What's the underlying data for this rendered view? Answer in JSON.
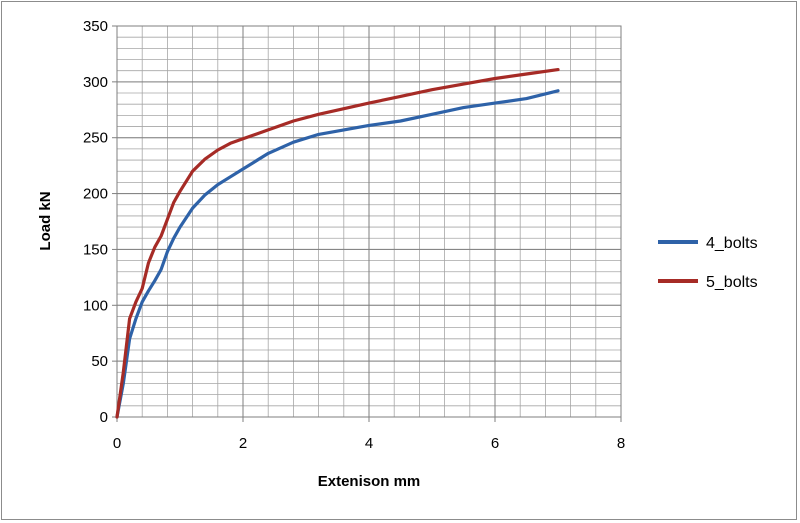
{
  "chart_data": {
    "type": "line",
    "title": "",
    "xlabel": "Extenison mm",
    "ylabel": "Load kN",
    "xlim": [
      0,
      8
    ],
    "ylim": [
      0,
      350
    ],
    "x_ticks": [
      0,
      2,
      4,
      6,
      8
    ],
    "y_ticks": [
      0,
      50,
      100,
      150,
      200,
      250,
      300,
      350
    ],
    "x_minor_step": 0.4,
    "y_minor_step": 10,
    "grid": true,
    "legend_position": "right",
    "series": [
      {
        "name": "4_bolts",
        "color": "#2e62a8",
        "points": [
          [
            0,
            0
          ],
          [
            0.1,
            30
          ],
          [
            0.2,
            70
          ],
          [
            0.3,
            88
          ],
          [
            0.4,
            103
          ],
          [
            0.5,
            113
          ],
          [
            0.6,
            122
          ],
          [
            0.7,
            132
          ],
          [
            0.8,
            148
          ],
          [
            0.9,
            160
          ],
          [
            1.0,
            170
          ],
          [
            1.2,
            187
          ],
          [
            1.4,
            199
          ],
          [
            1.6,
            208
          ],
          [
            1.8,
            215
          ],
          [
            2.0,
            222
          ],
          [
            2.4,
            236
          ],
          [
            2.8,
            246
          ],
          [
            3.2,
            253
          ],
          [
            3.6,
            257
          ],
          [
            4.0,
            261
          ],
          [
            4.5,
            265
          ],
          [
            5.0,
            271
          ],
          [
            5.5,
            277
          ],
          [
            6.0,
            281
          ],
          [
            6.5,
            285
          ],
          [
            7.0,
            292
          ]
        ]
      },
      {
        "name": "5_bolts",
        "color": "#a62b26",
        "points": [
          [
            0,
            0
          ],
          [
            0.1,
            40
          ],
          [
            0.2,
            88
          ],
          [
            0.3,
            103
          ],
          [
            0.4,
            115
          ],
          [
            0.5,
            138
          ],
          [
            0.6,
            152
          ],
          [
            0.7,
            162
          ],
          [
            0.8,
            177
          ],
          [
            0.9,
            192
          ],
          [
            1.0,
            202
          ],
          [
            1.2,
            220
          ],
          [
            1.4,
            231
          ],
          [
            1.6,
            239
          ],
          [
            1.8,
            245
          ],
          [
            2.0,
            249
          ],
          [
            2.4,
            257
          ],
          [
            2.8,
            265
          ],
          [
            3.2,
            271
          ],
          [
            3.6,
            276
          ],
          [
            4.0,
            281
          ],
          [
            4.5,
            287
          ],
          [
            5.0,
            293
          ],
          [
            5.5,
            298
          ],
          [
            6.0,
            303
          ],
          [
            6.5,
            307
          ],
          [
            7.0,
            311
          ]
        ]
      }
    ]
  }
}
